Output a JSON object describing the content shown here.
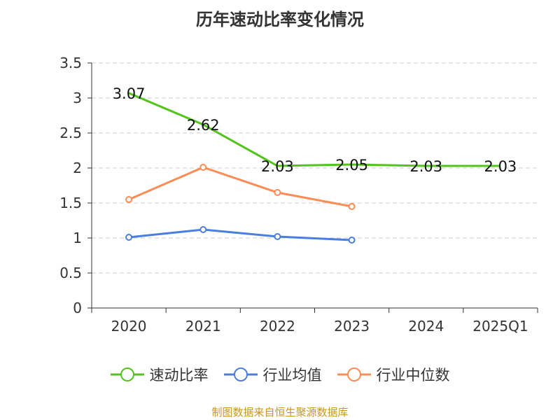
{
  "chart_data": {
    "type": "line",
    "title": "历年速动比率变化情况",
    "categories": [
      "2020",
      "2021",
      "2022",
      "2023",
      "2024",
      "2025Q1"
    ],
    "ylim": [
      0,
      3.5
    ],
    "yticks": [
      "0",
      "0.5",
      "1",
      "1.5",
      "2",
      "2.5",
      "3",
      "3.5"
    ],
    "grid": true,
    "legend_position": "bottom",
    "series": [
      {
        "name": "速动比率",
        "color": "#52c41a",
        "values": [
          3.07,
          2.62,
          2.03,
          2.05,
          2.03,
          2.03
        ],
        "labels": [
          "3.07",
          "2.62",
          "2.03",
          "2.05",
          "2.03",
          "2.03"
        ]
      },
      {
        "name": "行业均值",
        "color": "#4a7ee0",
        "values": [
          1.01,
          1.12,
          1.02,
          0.97,
          null,
          null
        ]
      },
      {
        "name": "行业中位数",
        "color": "#ff8c55",
        "values": [
          1.55,
          2.01,
          1.65,
          1.45,
          null,
          null
        ]
      }
    ]
  },
  "source": "制图数据来自恒生聚源数据库"
}
